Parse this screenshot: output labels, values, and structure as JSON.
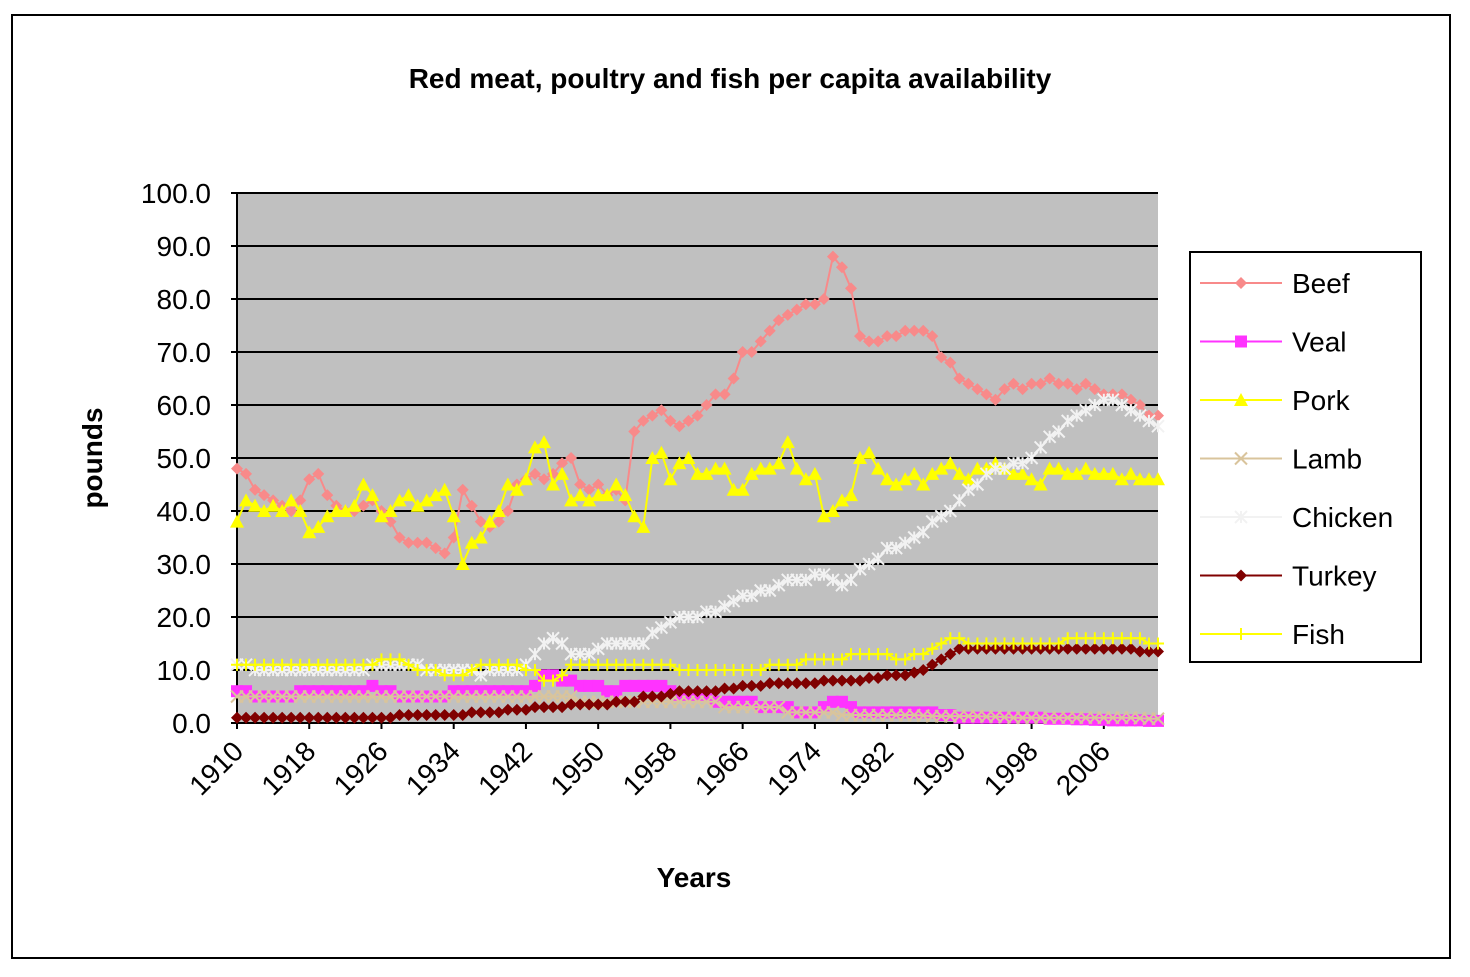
{
  "chart_data": {
    "type": "line",
    "title": "Red meat, poultry and fish per capita availability",
    "xlabel": "Years",
    "ylabel": "pounds",
    "x": [
      1910,
      1911,
      1912,
      1913,
      1914,
      1915,
      1916,
      1917,
      1918,
      1919,
      1920,
      1921,
      1922,
      1923,
      1924,
      1925,
      1926,
      1927,
      1928,
      1929,
      1930,
      1931,
      1932,
      1933,
      1934,
      1935,
      1936,
      1937,
      1938,
      1939,
      1940,
      1941,
      1942,
      1943,
      1944,
      1945,
      1946,
      1947,
      1948,
      1949,
      1950,
      1951,
      1952,
      1953,
      1954,
      1955,
      1956,
      1957,
      1958,
      1959,
      1960,
      1961,
      1962,
      1963,
      1964,
      1965,
      1966,
      1967,
      1968,
      1969,
      1970,
      1971,
      1972,
      1973,
      1974,
      1975,
      1976,
      1977,
      1978,
      1979,
      1980,
      1981,
      1982,
      1983,
      1984,
      1985,
      1986,
      1987,
      1988,
      1989,
      1990,
      1991,
      1992,
      1993,
      1994,
      1995,
      1996,
      1997,
      1998,
      1999,
      2000,
      2001,
      2002,
      2003,
      2004,
      2005,
      2006,
      2007,
      2008,
      2009,
      2010,
      2011,
      2012
    ],
    "xlim": [
      1910,
      2012
    ],
    "xticks": [
      1910,
      1918,
      1926,
      1934,
      1942,
      1950,
      1958,
      1966,
      1974,
      1982,
      1990,
      1998,
      2006
    ],
    "ylim": [
      0,
      100
    ],
    "yticks": [
      {
        "value": 0,
        "label": "0.0"
      },
      {
        "value": 10,
        "label": "10.0"
      },
      {
        "value": 20,
        "label": "20.0"
      },
      {
        "value": 30,
        "label": "30.0"
      },
      {
        "value": 40,
        "label": "40.0"
      },
      {
        "value": 50,
        "label": "50.0"
      },
      {
        "value": 60,
        "label": "60.0"
      },
      {
        "value": 70,
        "label": "70.0"
      },
      {
        "value": 80,
        "label": "80.0"
      },
      {
        "value": 90,
        "label": "90.0"
      },
      {
        "value": 100,
        "label": "100.0"
      }
    ],
    "grid": true,
    "legend": "right",
    "series": [
      {
        "name": "Beef",
        "color": "#f88a8a",
        "marker": "diamond",
        "values": [
          48,
          47,
          44,
          43,
          42,
          41,
          40,
          42,
          46,
          47,
          43,
          41,
          40,
          40,
          41,
          42,
          40,
          38,
          35,
          34,
          34,
          34,
          33,
          32,
          35,
          44,
          41,
          38,
          37,
          38,
          40,
          45,
          46,
          47,
          46,
          47,
          49,
          50,
          45,
          44,
          45,
          43,
          44,
          42,
          55,
          57,
          58,
          59,
          57,
          56,
          57,
          58,
          60,
          62,
          62,
          65,
          70,
          70,
          72,
          74,
          76,
          77,
          78,
          79,
          79,
          80,
          88,
          86,
          82,
          73,
          72,
          72,
          73,
          73,
          74,
          74,
          74,
          73,
          69,
          68,
          65,
          64,
          63,
          62,
          61,
          63,
          64,
          63,
          64,
          64,
          65,
          64,
          64,
          63,
          64,
          63,
          62,
          62,
          62,
          61,
          60,
          58,
          58
        ]
      },
      {
        "name": "Veal",
        "color": "#ff33ff",
        "marker": "square",
        "values": [
          6,
          6,
          5,
          5,
          5,
          5,
          5,
          6,
          6,
          6,
          6,
          6,
          6,
          6,
          6,
          7,
          6,
          6,
          5,
          5,
          5,
          5,
          5,
          5,
          6,
          6,
          6,
          6,
          6,
          6,
          6,
          6,
          6,
          7,
          9,
          9,
          8,
          8,
          7,
          7,
          7,
          6,
          6,
          7,
          7,
          7,
          7,
          7,
          6,
          5,
          5,
          5,
          5,
          4,
          4,
          4,
          4,
          4,
          3,
          3,
          3,
          3,
          2,
          2,
          2,
          3,
          4,
          4,
          3,
          2,
          2,
          2,
          2,
          2,
          2,
          2,
          2,
          2,
          1.5,
          1.5,
          1,
          1,
          1,
          1,
          1,
          1,
          1,
          1,
          1,
          1,
          0.8,
          0.8,
          0.8,
          0.7,
          0.7,
          0.6,
          0.6,
          0.5,
          0.5,
          0.5,
          0.5,
          0.4,
          0.4
        ]
      },
      {
        "name": "Pork",
        "color": "#ffff00",
        "marker": "triangle",
        "values": [
          38,
          42,
          41,
          40,
          41,
          40,
          42,
          40,
          36,
          37,
          39,
          40,
          40,
          41,
          45,
          43,
          39,
          40,
          42,
          43,
          41,
          42,
          43,
          44,
          39,
          30,
          34,
          35,
          38,
          40,
          45,
          44,
          46,
          52,
          53,
          45,
          47,
          42,
          43,
          42,
          43,
          43,
          45,
          43,
          39,
          37,
          50,
          51,
          46,
          49,
          50,
          47,
          47,
          48,
          48,
          44,
          44,
          47,
          48,
          48,
          49,
          53,
          48,
          46,
          47,
          39,
          40,
          42,
          43,
          50,
          51,
          48,
          46,
          45,
          46,
          47,
          45,
          47,
          48,
          49,
          47,
          46,
          48,
          48,
          49,
          48,
          47,
          47,
          46,
          45,
          48,
          48,
          47,
          47,
          48,
          47,
          47,
          47,
          46,
          47,
          46,
          46,
          46
        ]
      },
      {
        "name": "Lamb",
        "color": "#d9c49c",
        "marker": "x",
        "values": [
          5,
          5,
          5,
          5,
          5,
          5,
          5,
          5,
          5,
          5,
          5,
          5,
          5,
          5,
          5,
          5,
          5,
          5,
          5,
          5,
          5,
          5,
          5,
          5,
          5,
          5,
          5,
          5,
          5,
          5,
          5,
          5,
          5,
          5,
          5,
          5,
          5,
          5,
          4,
          4,
          4,
          4,
          4,
          4,
          4,
          4,
          4,
          4,
          4,
          4,
          4,
          4,
          4,
          4,
          3,
          3,
          3,
          3,
          3,
          3,
          3,
          2,
          2,
          2,
          2,
          2,
          2,
          1.5,
          1.5,
          1.5,
          1.5,
          1.5,
          1.5,
          1.5,
          1.5,
          1.5,
          1.4,
          1.3,
          1.3,
          1.3,
          1.3,
          1.3,
          1.3,
          1.2,
          1.2,
          1.1,
          1,
          1,
          1,
          1,
          1,
          1,
          1,
          1,
          1,
          1,
          1,
          1,
          1,
          1,
          0.9,
          0.8,
          0.8
        ]
      },
      {
        "name": "Chicken",
        "color": "#f2f2f2",
        "marker": "star",
        "values": [
          11,
          11,
          10,
          10,
          10,
          10,
          10,
          10,
          10,
          10,
          10,
          10,
          10,
          10,
          10,
          11,
          11,
          11,
          11,
          11,
          11,
          10,
          10,
          10,
          10,
          10,
          10,
          9,
          10,
          10,
          10,
          10,
          11,
          13,
          15,
          16,
          15,
          13,
          13,
          13,
          14,
          15,
          15,
          15,
          15,
          15,
          17,
          18,
          19,
          20,
          20,
          20,
          21,
          21,
          22,
          23,
          24,
          24,
          25,
          25,
          26,
          27,
          27,
          27,
          28,
          28,
          27,
          26,
          27,
          29,
          30,
          31,
          33,
          33,
          34,
          35,
          36,
          38,
          39,
          40,
          42,
          44,
          45,
          47,
          48,
          48,
          49,
          49,
          50,
          52,
          54,
          55,
          57,
          58,
          59,
          60,
          61,
          61,
          60,
          59,
          58,
          57,
          56
        ]
      },
      {
        "name": "Turkey",
        "color": "#800000",
        "marker": "diamond",
        "values": [
          1,
          1,
          1,
          1,
          1,
          1,
          1,
          1,
          1,
          1,
          1,
          1,
          1,
          1,
          1,
          1,
          1,
          1,
          1.5,
          1.5,
          1.5,
          1.5,
          1.5,
          1.5,
          1.5,
          1.5,
          2,
          2,
          2,
          2,
          2.5,
          2.5,
          2.5,
          3,
          3,
          3,
          3,
          3.5,
          3.5,
          3.5,
          3.5,
          3.5,
          4,
          4,
          4,
          5,
          5,
          5,
          5.5,
          6,
          6,
          6,
          6,
          6,
          6.5,
          6.5,
          7,
          7,
          7,
          7.5,
          7.5,
          7.5,
          7.5,
          7.5,
          7.5,
          8,
          8,
          8,
          8,
          8,
          8.5,
          8.5,
          9,
          9,
          9,
          9.5,
          10,
          11,
          12,
          13,
          14,
          14,
          14,
          14,
          14,
          14,
          14,
          14,
          14,
          14,
          14,
          14,
          14,
          14,
          14,
          14,
          14,
          14,
          14,
          14,
          13.5,
          13.5,
          13.5
        ]
      },
      {
        "name": "Fish",
        "color": "#ffff00",
        "marker": "plus",
        "values": [
          11,
          11,
          11,
          11,
          11,
          11,
          11,
          11,
          11,
          11,
          11,
          11,
          11,
          11,
          11,
          11,
          12,
          12,
          12,
          11,
          10,
          10,
          10,
          9,
          9,
          9,
          10,
          11,
          11,
          11,
          11,
          11,
          10,
          10,
          8,
          8,
          9,
          11,
          11,
          11,
          11,
          11,
          11,
          11,
          11,
          11,
          11,
          11,
          11,
          10,
          10,
          10,
          10,
          10,
          10,
          10,
          10,
          10,
          10,
          11,
          11,
          11,
          11,
          12,
          12,
          12,
          12,
          12,
          13,
          13,
          13,
          13,
          13,
          12,
          12,
          13,
          13,
          14,
          15,
          16,
          16,
          15,
          15,
          15,
          15,
          15,
          15,
          15,
          15,
          15,
          15,
          15,
          16,
          16,
          16,
          16,
          16,
          16,
          16,
          16,
          16,
          15,
          15
        ]
      }
    ]
  }
}
